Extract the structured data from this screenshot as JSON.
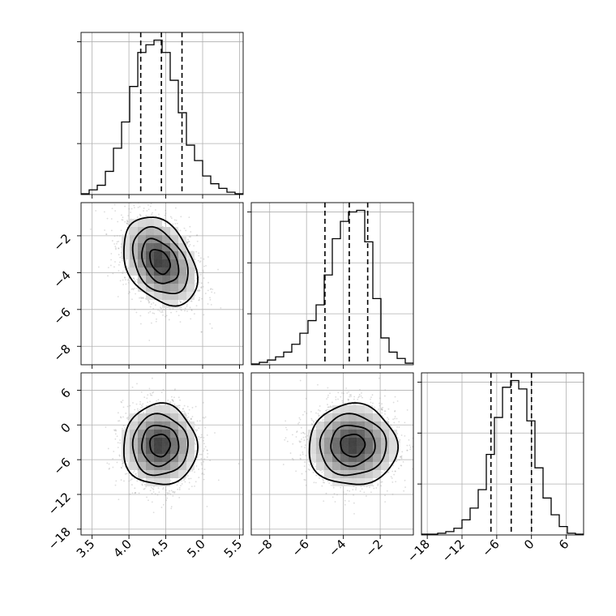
{
  "chart_data": {
    "type": "corner",
    "grid": true,
    "parameters": [
      {
        "range": [
          3.35,
          5.55
        ],
        "ticks": [
          3.5,
          4.0,
          4.5,
          5.0,
          5.5
        ],
        "tick_labels": [
          "3.5",
          "4.0",
          "4.5",
          "5.0",
          "5.5"
        ],
        "quantiles": [
          4.16,
          4.44,
          4.72
        ],
        "bin_edges": [
          3.35,
          3.46,
          3.57,
          3.68,
          3.79,
          3.9,
          4.01,
          4.12,
          4.23,
          4.34,
          4.45,
          4.56,
          4.67,
          4.78,
          4.89,
          5.0,
          5.11,
          5.22,
          5.33,
          5.44,
          5.55
        ],
        "hist_counts": [
          0.5,
          3,
          6,
          15,
          30,
          47,
          70,
          92,
          97,
          100,
          92,
          74,
          53,
          32,
          22,
          12,
          7,
          4,
          1.5,
          0.5
        ]
      },
      {
        "range": [
          -9.0,
          -0.2
        ],
        "ticks": [
          -8,
          -6,
          -4,
          -2
        ],
        "tick_labels": [
          "−8",
          "−6",
          "−4",
          "−2"
        ],
        "quantiles": [
          -5.0,
          -3.68,
          -2.68
        ],
        "bin_edges": [
          -9.0,
          -8.56,
          -8.12,
          -7.68,
          -7.24,
          -6.8,
          -6.36,
          -5.92,
          -5.48,
          -5.04,
          -4.6,
          -4.16,
          -3.72,
          -3.28,
          -2.84,
          -2.4,
          -1.96,
          -1.52,
          -1.08,
          -0.64,
          -0.2
        ],
        "hist_counts": [
          0.5,
          1.5,
          3,
          5,
          8,
          13,
          20,
          28,
          38,
          57,
          80,
          91,
          97,
          98,
          78,
          42,
          17,
          8,
          4,
          1
        ]
      },
      {
        "range": [
          -19,
          9
        ],
        "ticks": [
          -18,
          -12,
          -6,
          0,
          6
        ],
        "tick_labels": [
          "−18",
          "−12",
          "−6",
          "0",
          "6"
        ],
        "quantiles": [
          -7.0,
          -3.5,
          0.0
        ],
        "bin_edges": [
          -19,
          -17.6,
          -16.2,
          -14.8,
          -13.4,
          -12,
          -10.6,
          -9.2,
          -7.8,
          -6.4,
          -5,
          -3.6,
          -2.2,
          -0.8,
          0.6,
          2,
          3.4,
          4.8,
          6.2,
          7.6,
          9
        ],
        "hist_counts": [
          0.5,
          0.5,
          1,
          2,
          4,
          9,
          16,
          27,
          48,
          70,
          88,
          92,
          87,
          68,
          40,
          22,
          12,
          5,
          1,
          0.5
        ]
      }
    ],
    "pairs": [
      {
        "x_param": 0,
        "y_param": 1,
        "center": [
          4.42,
          -3.4
        ],
        "spread": [
          0.25,
          1.2
        ],
        "correlation": -0.35,
        "contour_radii": [
          0.55,
          1.0,
          1.5,
          2.0
        ]
      },
      {
        "x_param": 0,
        "y_param": 2,
        "center": [
          4.42,
          -3.5
        ],
        "spread": [
          0.25,
          3.5
        ],
        "correlation": 0.0,
        "contour_radii": [
          0.55,
          1.0,
          1.5,
          2.0
        ]
      },
      {
        "x_param": 1,
        "y_param": 2,
        "center": [
          -3.5,
          -3.5
        ],
        "spread": [
          1.2,
          3.5
        ],
        "correlation": 0.0,
        "contour_radii": [
          0.55,
          1.0,
          1.5,
          2.0
        ]
      }
    ]
  }
}
